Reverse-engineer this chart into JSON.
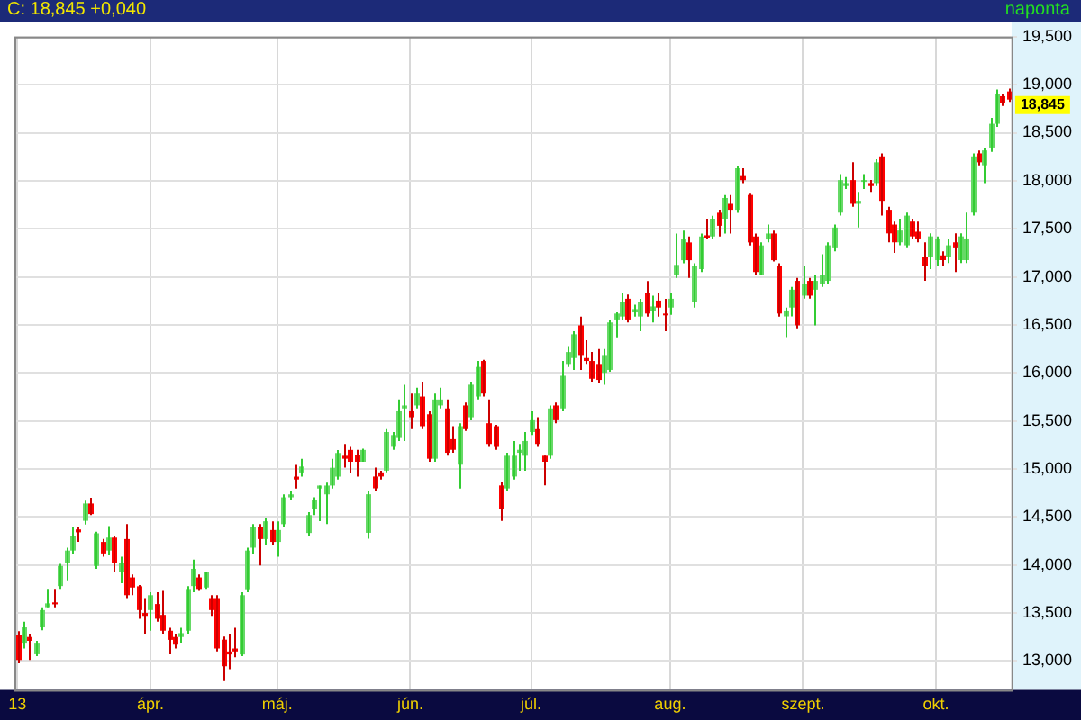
{
  "chart_data": {
    "type": "candlestick",
    "title": "C: 18,845 +0,040",
    "subtitle": "naponta",
    "categories": [
      "13",
      null,
      null,
      null,
      null,
      null,
      null,
      null,
      null,
      null,
      null,
      null,
      null,
      null,
      null,
      null,
      null,
      null,
      null,
      null,
      null,
      null,
      "ápr.",
      null,
      null,
      null,
      null,
      null,
      null,
      null,
      null,
      null,
      null,
      null,
      null,
      null,
      null,
      null,
      null,
      null,
      null,
      null,
      null,
      "máj.",
      null,
      null,
      null,
      null,
      null,
      null,
      null,
      null,
      null,
      null,
      null,
      null,
      null,
      null,
      null,
      null,
      null,
      null,
      null,
      null,
      null,
      "jún.",
      null,
      null,
      null,
      null,
      null,
      null,
      null,
      null,
      null,
      null,
      null,
      null,
      null,
      null,
      null,
      null,
      null,
      null,
      null,
      "júl.",
      null,
      null,
      null,
      null,
      null,
      null,
      null,
      null,
      null,
      null,
      null,
      null,
      null,
      null,
      null,
      null,
      null,
      null,
      null,
      null,
      null,
      null,
      "aug.",
      null,
      null,
      null,
      null,
      null,
      null,
      null,
      null,
      null,
      null,
      null,
      null,
      null,
      null,
      null,
      null,
      null,
      null,
      null,
      null,
      null,
      "szept.",
      null,
      null,
      null,
      null,
      null,
      null,
      null,
      null,
      null,
      null,
      null,
      null,
      null,
      null,
      null,
      null,
      null,
      null,
      null,
      null,
      null,
      "okt.",
      null,
      null,
      null,
      null,
      null,
      null,
      null,
      null,
      null,
      null,
      null,
      null
    ],
    "ohlc": [
      [
        13270,
        13310,
        12976,
        13010
      ],
      [
        13190,
        13410,
        13130,
        13350
      ],
      [
        13250,
        13284,
        13010,
        13210
      ],
      [
        13070,
        13210,
        13050,
        13190
      ],
      [
        13350,
        13560,
        13320,
        13530
      ],
      [
        13560,
        13750,
        13560,
        13600
      ],
      [
        13610,
        13750,
        13560,
        13590
      ],
      [
        13780,
        14010,
        13750,
        13990
      ],
      [
        14025,
        14180,
        13840,
        14150
      ],
      [
        14150,
        14390,
        14120,
        14300
      ],
      [
        14370,
        14390,
        14240,
        14340
      ],
      [
        14460,
        14670,
        14420,
        14640
      ],
      [
        14640,
        14700,
        14520,
        14530
      ],
      [
        13990,
        14345,
        13960,
        14330
      ],
      [
        14240,
        14270,
        14085,
        14120
      ],
      [
        14150,
        14405,
        14100,
        14285
      ],
      [
        14285,
        14300,
        13930,
        14025
      ],
      [
        13930,
        14085,
        13810,
        14025
      ],
      [
        14270,
        14425,
        13655,
        13685
      ],
      [
        13870,
        13900,
        13685,
        13765
      ],
      [
        13778,
        13790,
        13440,
        13530
      ],
      [
        13500,
        13655,
        13284,
        13470
      ],
      [
        13530,
        13716,
        13315,
        13685
      ],
      [
        13593,
        13716,
        13408,
        13440
      ],
      [
        13480,
        13730,
        13284,
        13315
      ],
      [
        13315,
        13346,
        13070,
        13220
      ],
      [
        13250,
        13284,
        13130,
        13170
      ],
      [
        13250,
        13346,
        13190,
        13290
      ],
      [
        13315,
        13780,
        13284,
        13750
      ],
      [
        13780,
        14055,
        13716,
        13960
      ],
      [
        13870,
        13900,
        13730,
        13750
      ],
      [
        13765,
        13930,
        13750,
        13930
      ],
      [
        13655,
        13685,
        13470,
        13530
      ],
      [
        13655,
        13685,
        13100,
        13130
      ],
      [
        13222,
        13254,
        12791,
        12945
      ],
      [
        13099,
        13284,
        12914,
        13068
      ],
      [
        13130,
        13346,
        13038,
        13099
      ],
      [
        13068,
        13716,
        13050,
        13685
      ],
      [
        13747,
        14180,
        13716,
        14150
      ],
      [
        14180,
        14425,
        14120,
        14395
      ],
      [
        14395,
        14425,
        13994,
        14270
      ],
      [
        14270,
        14488,
        14210,
        14455
      ],
      [
        14364,
        14455,
        14210,
        14240
      ],
      [
        14240,
        14455,
        14086,
        14364
      ],
      [
        14425,
        14735,
        14395,
        14704
      ],
      [
        14704,
        14765,
        14673,
        14735
      ],
      [
        14920,
        15043,
        14796,
        14890
      ],
      [
        14963,
        15105,
        14920,
        15025
      ],
      [
        14333,
        14550,
        14303,
        14519
      ],
      [
        14580,
        14704,
        14519,
        14673
      ],
      [
        14796,
        14827,
        14457,
        14827
      ],
      [
        14735,
        14858,
        14426,
        14827
      ],
      [
        14827,
        15105,
        14796,
        15012
      ],
      [
        14920,
        15197,
        14889,
        15166
      ],
      [
        15137,
        15260,
        15013,
        15106
      ],
      [
        15198,
        15230,
        14952,
        15075
      ],
      [
        15150,
        15198,
        14920,
        15075
      ],
      [
        15075,
        15210,
        15075,
        15198
      ],
      [
        14335,
        14767,
        14273,
        14736
      ],
      [
        14921,
        15013,
        14767,
        14798
      ],
      [
        14964,
        14982,
        14890,
        14921
      ],
      [
        14982,
        15414,
        14964,
        15384
      ],
      [
        15230,
        15384,
        15198,
        15353
      ],
      [
        15322,
        15723,
        15291,
        15600
      ],
      [
        15630,
        15877,
        15291,
        15661
      ],
      [
        15600,
        15785,
        15414,
        15538
      ],
      [
        15661,
        15846,
        15630,
        15785
      ],
      [
        15754,
        15908,
        15414,
        15445
      ],
      [
        15569,
        15600,
        15075,
        15106
      ],
      [
        15106,
        15785,
        15075,
        15723
      ],
      [
        15661,
        15846,
        15630,
        15723
      ],
      [
        15630,
        15723,
        15137,
        15168
      ],
      [
        15310,
        15445,
        15168,
        15199
      ],
      [
        15044,
        15476,
        14797,
        15445
      ],
      [
        15661,
        15692,
        15396,
        15414
      ],
      [
        15538,
        15908,
        15507,
        15877
      ],
      [
        15754,
        16124,
        15723,
        16062
      ],
      [
        16124,
        16136,
        15754,
        15785
      ],
      [
        15476,
        15723,
        15229,
        15260
      ],
      [
        15445,
        15458,
        15198,
        15229
      ],
      [
        14828,
        14859,
        14458,
        14581
      ],
      [
        14797,
        15168,
        14767,
        15137
      ],
      [
        14921,
        15291,
        14890,
        15137
      ],
      [
        15168,
        15260,
        14982,
        15199
      ],
      [
        15137,
        15384,
        14982,
        15291
      ],
      [
        15384,
        15600,
        15353,
        15507
      ],
      [
        15414,
        15538,
        15229,
        15260
      ],
      [
        15137,
        15137,
        14828,
        15075
      ],
      [
        15137,
        15661,
        15106,
        15630
      ],
      [
        15661,
        15692,
        15476,
        15507
      ],
      [
        15630,
        16124,
        15600,
        15970
      ],
      [
        16093,
        16279,
        16062,
        16217
      ],
      [
        16155,
        16433,
        16031,
        16402
      ],
      [
        16495,
        16587,
        16031,
        16186
      ],
      [
        16155,
        16340,
        16093,
        16124
      ],
      [
        16124,
        16217,
        15908,
        15939
      ],
      [
        16093,
        16248,
        15890,
        15927
      ],
      [
        16001,
        16248,
        15877,
        16186
      ],
      [
        16031,
        16556,
        16013,
        16525
      ],
      [
        16556,
        16630,
        16371,
        16618
      ],
      [
        16587,
        16834,
        16556,
        16741
      ],
      [
        16772,
        16815,
        16525,
        16556
      ],
      [
        16630,
        16710,
        16587,
        16664
      ],
      [
        16587,
        16772,
        16433,
        16741
      ],
      [
        16834,
        16957,
        16587,
        16618
      ],
      [
        16649,
        16803,
        16525,
        16692
      ],
      [
        16753,
        16834,
        16587,
        16680
      ],
      [
        16618,
        16772,
        16433,
        16605
      ],
      [
        16680,
        16834,
        16605,
        16772
      ],
      [
        17019,
        17451,
        16988,
        17124
      ],
      [
        17173,
        17482,
        17142,
        17389
      ],
      [
        17358,
        17420,
        16988,
        17173
      ],
      [
        16741,
        17142,
        16680,
        17111
      ],
      [
        17080,
        17451,
        17050,
        17420
      ],
      [
        17432,
        17605,
        17389,
        17408
      ],
      [
        17420,
        17636,
        17389,
        17605
      ],
      [
        17667,
        17698,
        17420,
        17531
      ],
      [
        17605,
        17852,
        17451,
        17821
      ],
      [
        17760,
        17852,
        17451,
        17698
      ],
      [
        17698,
        18148,
        17667,
        18130
      ],
      [
        18049,
        18130,
        17975,
        18006
      ],
      [
        17852,
        17864,
        17327,
        17358
      ],
      [
        17420,
        17451,
        17019,
        17050
      ],
      [
        17019,
        17358,
        17019,
        17327
      ],
      [
        17389,
        17544,
        17358,
        17451
      ],
      [
        17451,
        17482,
        17161,
        17173
      ],
      [
        17111,
        17142,
        16587,
        16618
      ],
      [
        16588,
        16680,
        16372,
        16650
      ],
      [
        16680,
        16896,
        16588,
        16866
      ],
      [
        16958,
        16989,
        16464,
        16495
      ],
      [
        16804,
        17112,
        16773,
        16927
      ],
      [
        16958,
        16989,
        16773,
        16804
      ],
      [
        16866,
        17020,
        16495,
        16958
      ],
      [
        16927,
        17236,
        16896,
        17020
      ],
      [
        16958,
        17359,
        16927,
        17328
      ],
      [
        17297,
        17544,
        17266,
        17513
      ],
      [
        17668,
        18069,
        17637,
        18007
      ],
      [
        17945,
        18038,
        17914,
        17976
      ],
      [
        18007,
        18192,
        17729,
        17760
      ],
      [
        17760,
        17883,
        17513,
        17791
      ],
      [
        17995,
        18069,
        17914,
        18007
      ],
      [
        17976,
        18007,
        17883,
        17945
      ],
      [
        17976,
        18223,
        17945,
        18192
      ],
      [
        18254,
        18285,
        17637,
        17791
      ],
      [
        17698,
        17729,
        17359,
        17452
      ],
      [
        17544,
        17575,
        17248,
        17359
      ],
      [
        17359,
        17606,
        17328,
        17482
      ],
      [
        17328,
        17668,
        17297,
        17637
      ],
      [
        17575,
        17606,
        17390,
        17421
      ],
      [
        17470,
        17575,
        17359,
        17390
      ],
      [
        17205,
        17359,
        16958,
        17112
      ],
      [
        17205,
        17452,
        17081,
        17421
      ],
      [
        17174,
        17421,
        17112,
        17390
      ],
      [
        17223,
        17266,
        17112,
        17174
      ],
      [
        17205,
        17390,
        17143,
        17328
      ],
      [
        17359,
        17452,
        17050,
        17297
      ],
      [
        17174,
        17452,
        17143,
        17421
      ],
      [
        17174,
        17668,
        17143,
        17390
      ],
      [
        17668,
        18285,
        17637,
        18254
      ],
      [
        18285,
        18316,
        18161,
        18192
      ],
      [
        18161,
        18346,
        17976,
        18316
      ],
      [
        18346,
        18655,
        18300,
        18593
      ],
      [
        18593,
        18950,
        18560,
        18900
      ],
      [
        18880,
        18900,
        18780,
        18805
      ],
      [
        18930,
        18960,
        18820,
        18845
      ]
    ],
    "ylim": [
      12700,
      19500
    ],
    "yticks": [
      {
        "value": 13000,
        "label": "13,000"
      },
      {
        "value": 13500,
        "label": "13,500"
      },
      {
        "value": 14000,
        "label": "14,000"
      },
      {
        "value": 14500,
        "label": "14,500"
      },
      {
        "value": 15000,
        "label": "15,000"
      },
      {
        "value": 15500,
        "label": "15,500"
      },
      {
        "value": 16000,
        "label": "16,000"
      },
      {
        "value": 16500,
        "label": "16,500"
      },
      {
        "value": 17000,
        "label": "17,000"
      },
      {
        "value": 17500,
        "label": "17,500"
      },
      {
        "value": 18000,
        "label": "18,000"
      },
      {
        "value": 18500,
        "label": "18,500"
      },
      {
        "value": 19000,
        "label": "19,000"
      },
      {
        "value": 19500,
        "label": "19,500"
      }
    ],
    "grid": true,
    "annotations": [
      "18,845"
    ]
  }
}
